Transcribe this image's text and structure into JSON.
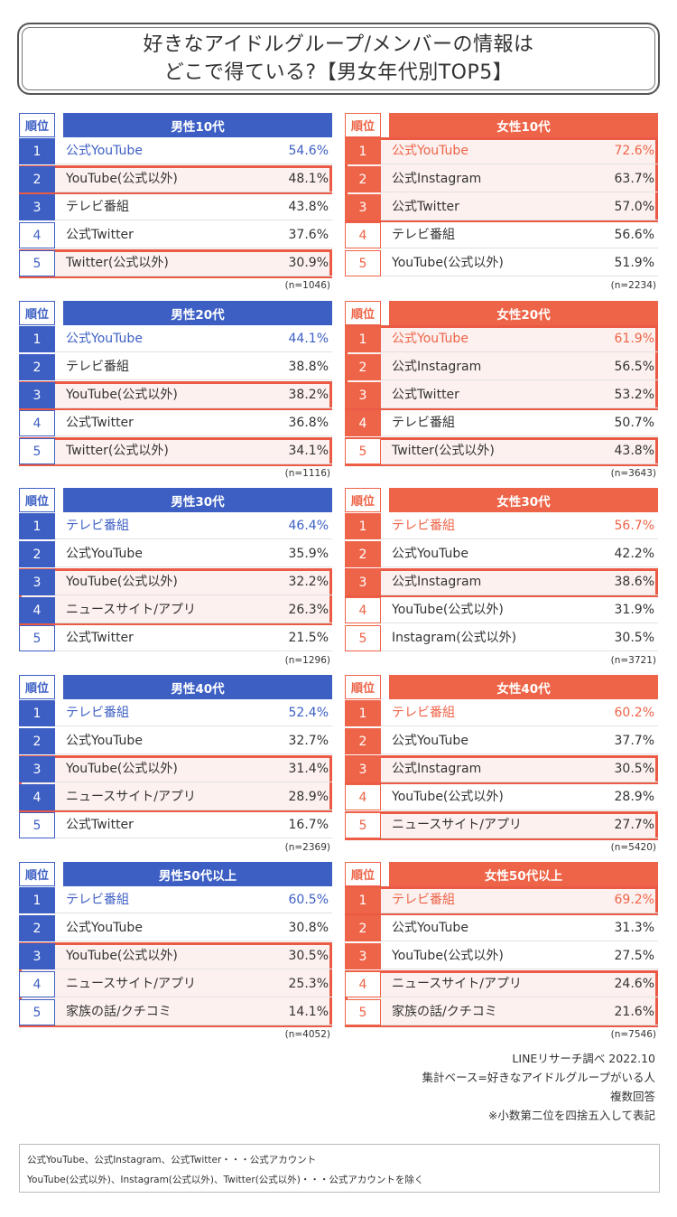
{
  "title": {
    "line1": "好きなアイドルグループ/メンバーの情報は",
    "line2": "どこで得ている?【男女年代別TOP5】"
  },
  "colors": {
    "male": "#3d5fc4",
    "female": "#ee6448",
    "highlight": "#ea5a45"
  },
  "rank_header": "順位",
  "chart_data": [
    {
      "type": "table",
      "title": "男性10代",
      "n": "(n=1046)",
      "rows": [
        {
          "rank": "1",
          "label": "公式YouTube",
          "value": "54.6%"
        },
        {
          "rank": "2",
          "label": "YouTube(公式以外)",
          "value": "48.1%"
        },
        {
          "rank": "3",
          "label": "テレビ番組",
          "value": "43.8%"
        },
        {
          "rank": "4",
          "label": "公式Twitter",
          "value": "37.6%"
        },
        {
          "rank": "5",
          "label": "Twitter(公式以外)",
          "value": "30.9%"
        }
      ]
    },
    {
      "type": "table",
      "title": "女性10代",
      "n": "(n=2234)",
      "rows": [
        {
          "rank": "1",
          "label": "公式YouTube",
          "value": "72.6%"
        },
        {
          "rank": "2",
          "label": "公式Instagram",
          "value": "63.7%"
        },
        {
          "rank": "3",
          "label": "公式Twitter",
          "value": "57.0%"
        },
        {
          "rank": "4",
          "label": "テレビ番組",
          "value": "56.6%"
        },
        {
          "rank": "5",
          "label": "YouTube(公式以外)",
          "value": "51.9%"
        }
      ]
    },
    {
      "type": "table",
      "title": "男性20代",
      "n": "(n=1116)",
      "rows": [
        {
          "rank": "1",
          "label": "公式YouTube",
          "value": "44.1%"
        },
        {
          "rank": "2",
          "label": "テレビ番組",
          "value": "38.8%"
        },
        {
          "rank": "3",
          "label": "YouTube(公式以外)",
          "value": "38.2%"
        },
        {
          "rank": "4",
          "label": "公式Twitter",
          "value": "36.8%"
        },
        {
          "rank": "5",
          "label": "Twitter(公式以外)",
          "value": "34.1%"
        }
      ]
    },
    {
      "type": "table",
      "title": "女性20代",
      "n": "(n=3643)",
      "rows": [
        {
          "rank": "1",
          "label": "公式YouTube",
          "value": "61.9%"
        },
        {
          "rank": "2",
          "label": "公式Instagram",
          "value": "56.5%"
        },
        {
          "rank": "3",
          "label": "公式Twitter",
          "value": "53.2%"
        },
        {
          "rank": "4",
          "label": "テレビ番組",
          "value": "50.7%"
        },
        {
          "rank": "5",
          "label": "Twitter(公式以外)",
          "value": "43.8%"
        }
      ]
    },
    {
      "type": "table",
      "title": "男性30代",
      "n": "(n=1296)",
      "rows": [
        {
          "rank": "1",
          "label": "テレビ番組",
          "value": "46.4%"
        },
        {
          "rank": "2",
          "label": "公式YouTube",
          "value": "35.9%"
        },
        {
          "rank": "3",
          "label": "YouTube(公式以外)",
          "value": "32.2%"
        },
        {
          "rank": "4",
          "label": "ニュースサイト/アプリ",
          "value": "26.3%"
        },
        {
          "rank": "5",
          "label": "公式Twitter",
          "value": "21.5%"
        }
      ]
    },
    {
      "type": "table",
      "title": "女性30代",
      "n": "(n=3721)",
      "rows": [
        {
          "rank": "1",
          "label": "テレビ番組",
          "value": "56.7%"
        },
        {
          "rank": "2",
          "label": "公式YouTube",
          "value": "42.2%"
        },
        {
          "rank": "3",
          "label": "公式Instagram",
          "value": "38.6%"
        },
        {
          "rank": "4",
          "label": "YouTube(公式以外)",
          "value": "31.9%"
        },
        {
          "rank": "5",
          "label": "Instagram(公式以外)",
          "value": "30.5%"
        }
      ]
    },
    {
      "type": "table",
      "title": "男性40代",
      "n": "(n=2369)",
      "rows": [
        {
          "rank": "1",
          "label": "テレビ番組",
          "value": "52.4%"
        },
        {
          "rank": "2",
          "label": "公式YouTube",
          "value": "32.7%"
        },
        {
          "rank": "3",
          "label": "YouTube(公式以外)",
          "value": "31.4%"
        },
        {
          "rank": "4",
          "label": "ニュースサイト/アプリ",
          "value": "28.9%"
        },
        {
          "rank": "5",
          "label": "公式Twitter",
          "value": "16.7%"
        }
      ]
    },
    {
      "type": "table",
      "title": "女性40代",
      "n": "(n=5420)",
      "rows": [
        {
          "rank": "1",
          "label": "テレビ番組",
          "value": "60.2%"
        },
        {
          "rank": "2",
          "label": "公式YouTube",
          "value": "37.7%"
        },
        {
          "rank": "3",
          "label": "公式Instagram",
          "value": "30.5%"
        },
        {
          "rank": "4",
          "label": "YouTube(公式以外)",
          "value": "28.9%"
        },
        {
          "rank": "5",
          "label": "ニュースサイト/アプリ",
          "value": "27.7%"
        }
      ]
    },
    {
      "type": "table",
      "title": "男性50代以上",
      "n": "(n=4052)",
      "rows": [
        {
          "rank": "1",
          "label": "テレビ番組",
          "value": "60.5%"
        },
        {
          "rank": "2",
          "label": "公式YouTube",
          "value": "30.8%"
        },
        {
          "rank": "3",
          "label": "YouTube(公式以外)",
          "value": "30.5%"
        },
        {
          "rank": "4",
          "label": "ニュースサイト/アプリ",
          "value": "25.3%"
        },
        {
          "rank": "5",
          "label": "家族の話/クチコミ",
          "value": "14.1%"
        }
      ]
    },
    {
      "type": "table",
      "title": "女性50代以上",
      "n": "(n=7546)",
      "rows": [
        {
          "rank": "1",
          "label": "テレビ番組",
          "value": "69.2%"
        },
        {
          "rank": "2",
          "label": "公式YouTube",
          "value": "31.3%"
        },
        {
          "rank": "3",
          "label": "YouTube(公式以外)",
          "value": "27.5%"
        },
        {
          "rank": "4",
          "label": "ニュースサイト/アプリ",
          "value": "24.6%"
        },
        {
          "rank": "5",
          "label": "家族の話/クチコミ",
          "value": "21.6%"
        }
      ]
    }
  ],
  "footer": {
    "line1": "LINEリサーチ調べ 2022.10",
    "line2": "集計ベース=好きなアイドルグループがいる人",
    "line3": "複数回答",
    "line4": "※小数第二位を四捨五入して表記"
  },
  "notes": {
    "line1": "公式YouTube、公式Instagram、公式Twitter・・・公式アカウント",
    "line2": "YouTube(公式以外)、Instagram(公式以外)、Twitter(公式以外)・・・公式アカウントを除く"
  }
}
